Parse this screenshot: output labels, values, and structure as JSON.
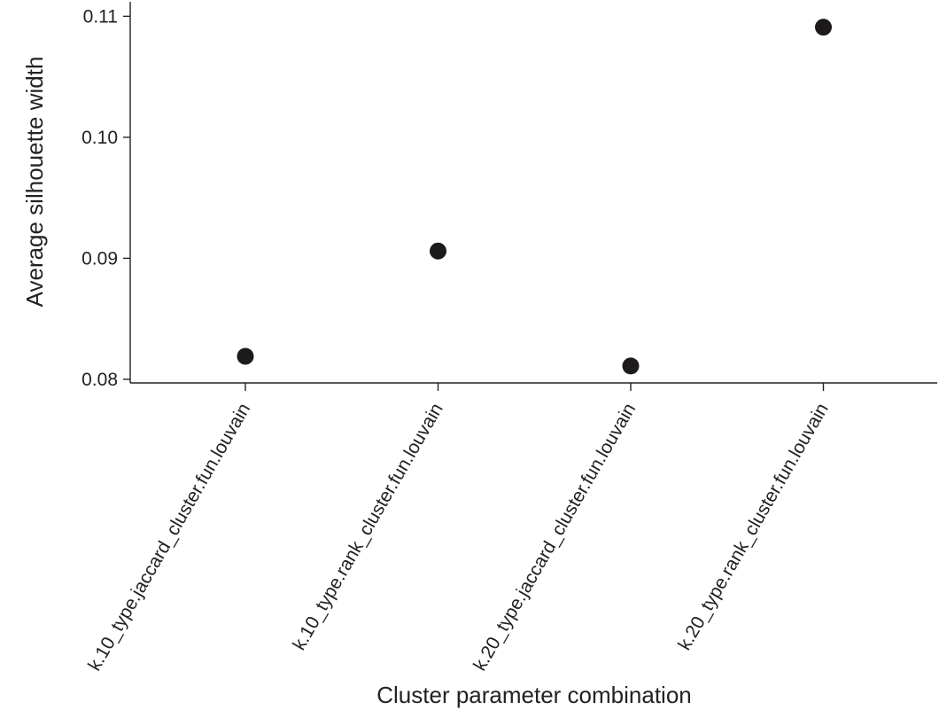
{
  "chart_data": {
    "type": "scatter",
    "title": "",
    "xlabel": "Cluster parameter combination",
    "ylabel": "Average silhouette width",
    "categories": [
      "k.10_type.jaccard_cluster.fun.louvain",
      "k.10_type.rank_cluster.fun.louvain",
      "k.20_type.jaccard_cluster.fun.louvain",
      "k.20_type.rank_cluster.fun.louvain"
    ],
    "values": [
      0.0819,
      0.0906,
      0.0811,
      0.1091
    ],
    "ylim": [
      0.0797,
      0.1112
    ],
    "yticks": [
      0.08,
      0.09,
      0.1,
      0.11
    ],
    "ytick_labels": [
      "0.08",
      "0.09",
      "0.10",
      "0.11"
    ],
    "grid": false,
    "legend": "none",
    "colors": {
      "point": "#1c1a1a",
      "axis": "#222222"
    }
  }
}
